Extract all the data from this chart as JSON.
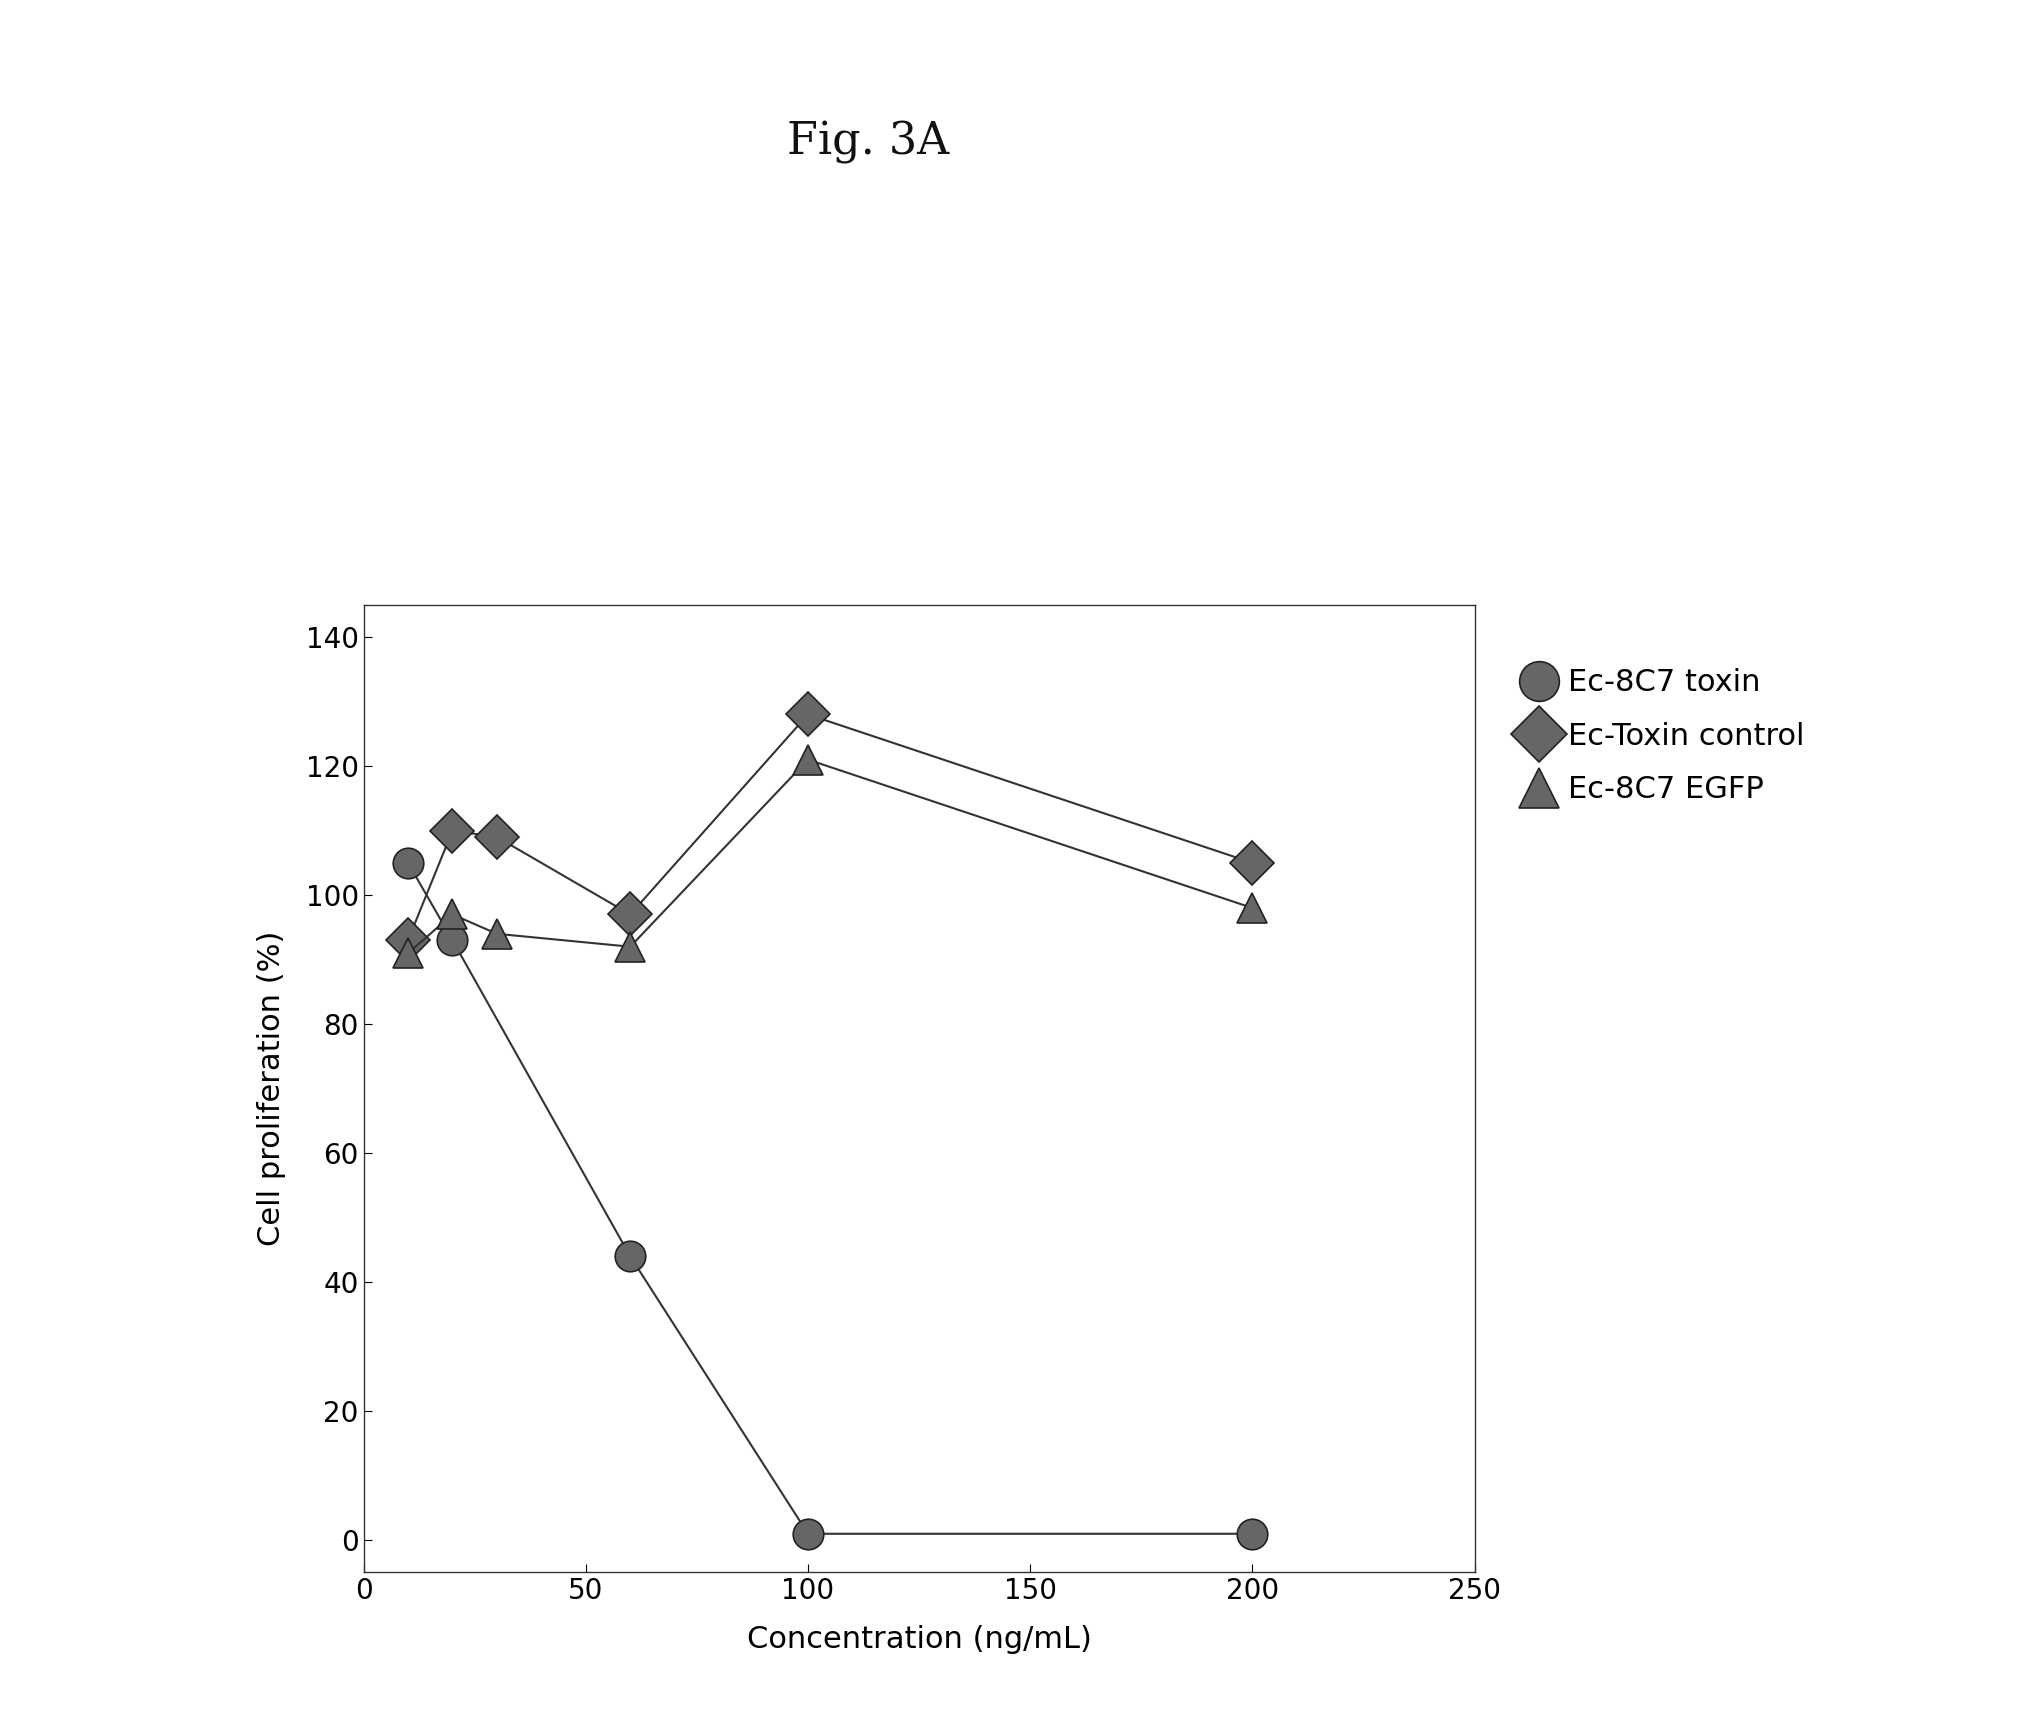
{
  "title": "Fig. 3A",
  "xlabel": "Concentration (ng/mL)",
  "ylabel": "Cell proliferation (%)",
  "xlim": [
    0,
    250
  ],
  "ylim": [
    -5,
    145
  ],
  "xticks": [
    0,
    50,
    100,
    150,
    200,
    250
  ],
  "yticks": [
    0,
    20,
    40,
    60,
    80,
    100,
    120,
    140
  ],
  "series": [
    {
      "label": "Ec-8C7 toxin",
      "marker": "o",
      "x": [
        10,
        20,
        60,
        100,
        200
      ],
      "y": [
        105,
        93,
        44,
        1,
        1
      ]
    },
    {
      "label": "Ec-Toxin control",
      "marker": "D",
      "x": [
        10,
        20,
        30,
        60,
        100,
        200
      ],
      "y": [
        93,
        110,
        109,
        97,
        128,
        105
      ]
    },
    {
      "label": "Ec-8C7 EGFP",
      "marker": "^",
      "x": [
        10,
        20,
        30,
        60,
        100,
        200
      ],
      "y": [
        91,
        97,
        94,
        92,
        121,
        98
      ]
    }
  ],
  "background_color": "#ffffff",
  "title_fontsize": 32,
  "axis_label_fontsize": 22,
  "tick_fontsize": 20,
  "legend_fontsize": 22,
  "marker_size": 22,
  "line_width": 1.5,
  "marker_color": "#666666",
  "marker_edge_color": "#222222",
  "line_color": "#333333"
}
